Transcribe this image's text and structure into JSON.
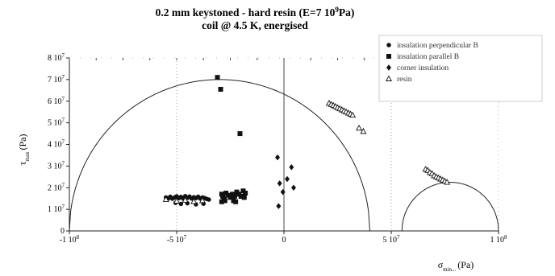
{
  "chart_data": {
    "type": "scatter",
    "title": "0.2 mm keystoned - hard resin  (E=7 10",
    "title_sup": "9",
    "title_tail": "Pa)",
    "subtitle": "coil @ 4.5 K, energised",
    "xlabel": "σ",
    "xlabel_sub": "min...",
    "xlabel_unit": "(Pa)",
    "ylabel": "τ",
    "ylabel_sub": "max",
    "ylabel_unit": "(Pa)",
    "xlim": [
      -100000000,
      100000000
    ],
    "ylim": [
      0,
      80000000
    ],
    "grid": false,
    "legend_position": "top-right",
    "x_ticks": [
      {
        "value": -100000000,
        "label": "-1 10",
        "sup": "8"
      },
      {
        "value": -50000000,
        "label": "-5 10",
        "sup": "7"
      },
      {
        "value": 0,
        "label": "0",
        "sup": ""
      },
      {
        "value": 50000000,
        "label": "5 10",
        "sup": "7"
      },
      {
        "value": 100000000,
        "label": "1 10",
        "sup": "8"
      }
    ],
    "y_ticks": [
      {
        "value": 0,
        "label": "0",
        "sup": ""
      },
      {
        "value": 10000000,
        "label": "1 10",
        "sup": "7"
      },
      {
        "value": 20000000,
        "label": "2 10",
        "sup": "7"
      },
      {
        "value": 30000000,
        "label": "3 10",
        "sup": "7"
      },
      {
        "value": 40000000,
        "label": "4 10",
        "sup": "7"
      },
      {
        "value": 50000000,
        "label": "5 10",
        "sup": "7"
      },
      {
        "value": 60000000,
        "label": "6 10",
        "sup": "7"
      },
      {
        "value": 70000000,
        "label": "7 10",
        "sup": "7"
      },
      {
        "value": 80000000,
        "label": "8 10",
        "sup": "7"
      }
    ],
    "reference_lines_x": [
      -50000000,
      0,
      50000000
    ],
    "circles": [
      {
        "center": -30000000,
        "radius": 70000000
      },
      {
        "center": 77500000,
        "radius": 22500000
      }
    ],
    "series": [
      {
        "name": "insulation perpendicular B",
        "marker": "circle",
        "points": [
          [
            -55000000,
            15500000
          ],
          [
            -54000000,
            15000000
          ],
          [
            -53000000,
            15800000
          ],
          [
            -52000000,
            14900000
          ],
          [
            -51000000,
            15500000
          ],
          [
            -50000000,
            16000000
          ],
          [
            -49000000,
            15200000
          ],
          [
            -48000000,
            15700000
          ],
          [
            -47000000,
            15000000
          ],
          [
            -46000000,
            16100000
          ],
          [
            -45000000,
            15300000
          ],
          [
            -44000000,
            15900000
          ],
          [
            -43000000,
            15000000
          ],
          [
            -42000000,
            15600000
          ],
          [
            -41000000,
            15200000
          ],
          [
            -40000000,
            15800000
          ],
          [
            -39000000,
            15000000
          ],
          [
            -38000000,
            15500000
          ],
          [
            -37000000,
            15200000
          ],
          [
            -36000000,
            14800000
          ],
          [
            -35000000,
            14500000
          ],
          [
            -50500000,
            13000000
          ],
          [
            -48000000,
            12500000
          ],
          [
            -45000000,
            12800000
          ],
          [
            -41000000,
            12300000
          ],
          [
            -37500000,
            12600000
          ]
        ]
      },
      {
        "name": "insulation parallel B",
        "marker": "square",
        "points": [
          [
            -31000000,
            71000000
          ],
          [
            -29500000,
            65500000
          ],
          [
            -20500000,
            45000000
          ],
          [
            -29000000,
            17000000
          ],
          [
            -28500000,
            16000000
          ],
          [
            -28000000,
            15000000
          ],
          [
            -27500000,
            14000000
          ],
          [
            -29000000,
            13500000
          ],
          [
            -27000000,
            17500000
          ],
          [
            -26000000,
            16500000
          ],
          [
            -25000000,
            15500000
          ],
          [
            -24000000,
            17000000
          ],
          [
            -23000000,
            16000000
          ],
          [
            -22000000,
            18000000
          ],
          [
            -21000000,
            17000000
          ],
          [
            -20000000,
            16000000
          ],
          [
            -19000000,
            18500000
          ],
          [
            -18500000,
            15500000
          ],
          [
            -18000000,
            17500000
          ],
          [
            -23500000,
            14000000
          ],
          [
            -22500000,
            13500000
          ]
        ]
      },
      {
        "name": "corner insulation",
        "marker": "diamond",
        "points": [
          [
            -3000000,
            34000000
          ],
          [
            -2000000,
            22000000
          ],
          [
            -500000,
            18000000
          ],
          [
            1500000,
            24000000
          ],
          [
            3500000,
            29500000
          ],
          [
            4500000,
            20000000
          ],
          [
            -2500000,
            11500000
          ]
        ]
      },
      {
        "name": "resin",
        "marker": "triangle",
        "points": [
          [
            21000000,
            59000000
          ],
          [
            22000000,
            58500000
          ],
          [
            23000000,
            58000000
          ],
          [
            24000000,
            57500000
          ],
          [
            25000000,
            57000000
          ],
          [
            26000000,
            56500000
          ],
          [
            27000000,
            56000000
          ],
          [
            28000000,
            55500000
          ],
          [
            29000000,
            55000000
          ],
          [
            30000000,
            54500000
          ],
          [
            31000000,
            54000000
          ],
          [
            32000000,
            53500000
          ],
          [
            35000000,
            47500000
          ],
          [
            37000000,
            46000000
          ],
          [
            66000000,
            28500000
          ],
          [
            67000000,
            28000000
          ],
          [
            68000000,
            27000000
          ],
          [
            69000000,
            26500000
          ],
          [
            70000000,
            25500000
          ],
          [
            71000000,
            25000000
          ],
          [
            72000000,
            24500000
          ],
          [
            73000000,
            24000000
          ],
          [
            74000000,
            23500000
          ],
          [
            75000000,
            23000000
          ],
          [
            76000000,
            22500000
          ],
          [
            -55000000,
            14500000
          ],
          [
            -50000000,
            13800000
          ],
          [
            -46000000,
            14200000
          ],
          [
            -42000000,
            13600000
          ],
          [
            -38000000,
            14000000
          ]
        ]
      }
    ]
  }
}
